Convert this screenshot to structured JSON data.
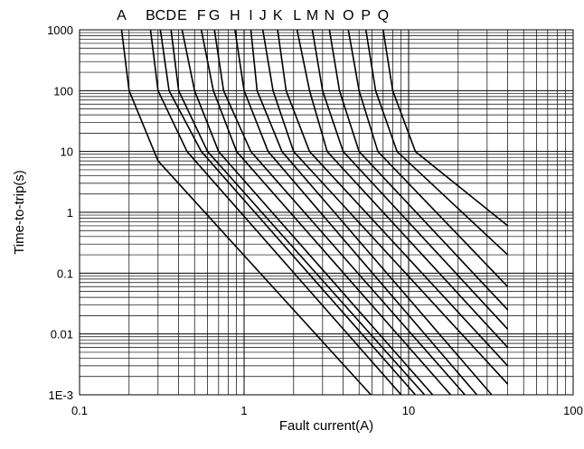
{
  "chart_data": {
    "type": "line",
    "title": "",
    "xlabel": "Fault current(A)",
    "ylabel": "Time-to-trip(s)",
    "xscale": "log",
    "yscale": "log",
    "xlim": [
      0.1,
      100
    ],
    "ylim": [
      0.001,
      1000
    ],
    "grid": true,
    "x_ticks": [
      "0.1",
      "1",
      "10",
      "100"
    ],
    "y_ticks": [
      "1E-3",
      "0.01",
      "0.1",
      "1",
      "10",
      "100",
      "1000"
    ],
    "series": [
      {
        "name": "A",
        "x": [
          0.18,
          0.2,
          0.3,
          5.9
        ],
        "y": [
          1000,
          100,
          7,
          0.001
        ]
      },
      {
        "name": "B",
        "x": [
          0.27,
          0.3,
          0.45,
          9
        ],
        "y": [
          1000,
          100,
          10,
          0.001
        ]
      },
      {
        "name": "C",
        "x": [
          0.31,
          0.35,
          0.55,
          11
        ],
        "y": [
          1000,
          100,
          10,
          0.001
        ]
      },
      {
        "name": "D",
        "x": [
          0.36,
          0.4,
          0.6,
          12.5
        ],
        "y": [
          1000,
          100,
          10,
          0.001
        ]
      },
      {
        "name": "E",
        "x": [
          0.42,
          0.5,
          0.7,
          14
        ],
        "y": [
          1000,
          100,
          10,
          0.001
        ]
      },
      {
        "name": "F",
        "x": [
          0.55,
          0.65,
          0.9,
          18
        ],
        "y": [
          1000,
          100,
          10,
          0.001
        ]
      },
      {
        "name": "G",
        "x": [
          0.66,
          0.75,
          1.1,
          22
        ],
        "y": [
          1000,
          100,
          10,
          0.001
        ]
      },
      {
        "name": "H",
        "x": [
          0.88,
          1,
          1.4,
          26
        ],
        "y": [
          1000,
          100,
          10,
          0.001
        ]
      },
      {
        "name": "I",
        "x": [
          1.1,
          1.2,
          1.7,
          32
        ],
        "y": [
          1000,
          100,
          10,
          0.001
        ]
      },
      {
        "name": "J",
        "x": [
          1.3,
          1.5,
          2,
          40
        ],
        "y": [
          1000,
          100,
          10,
          0.0015
        ]
      },
      {
        "name": "K",
        "x": [
          1.6,
          1.8,
          2.5,
          40
        ],
        "y": [
          1000,
          100,
          10,
          0.003
        ]
      },
      {
        "name": "L",
        "x": [
          2.1,
          2.5,
          3.2,
          40
        ],
        "y": [
          1000,
          100,
          10,
          0.006
        ]
      },
      {
        "name": "M",
        "x": [
          2.6,
          3,
          4,
          40
        ],
        "y": [
          1000,
          100,
          10,
          0.012
        ]
      },
      {
        "name": "N",
        "x": [
          3.3,
          3.8,
          5,
          40
        ],
        "y": [
          1000,
          100,
          10,
          0.025
        ]
      },
      {
        "name": "O",
        "x": [
          4.3,
          5,
          6.5,
          40
        ],
        "y": [
          1000,
          100,
          10,
          0.06
        ]
      },
      {
        "name": "P",
        "x": [
          5.5,
          6.3,
          8.5,
          40
        ],
        "y": [
          1000,
          100,
          10,
          0.2
        ]
      },
      {
        "name": "Q",
        "x": [
          7,
          8,
          11,
          40
        ],
        "y": [
          1000,
          100,
          10,
          0.6
        ]
      }
    ]
  }
}
